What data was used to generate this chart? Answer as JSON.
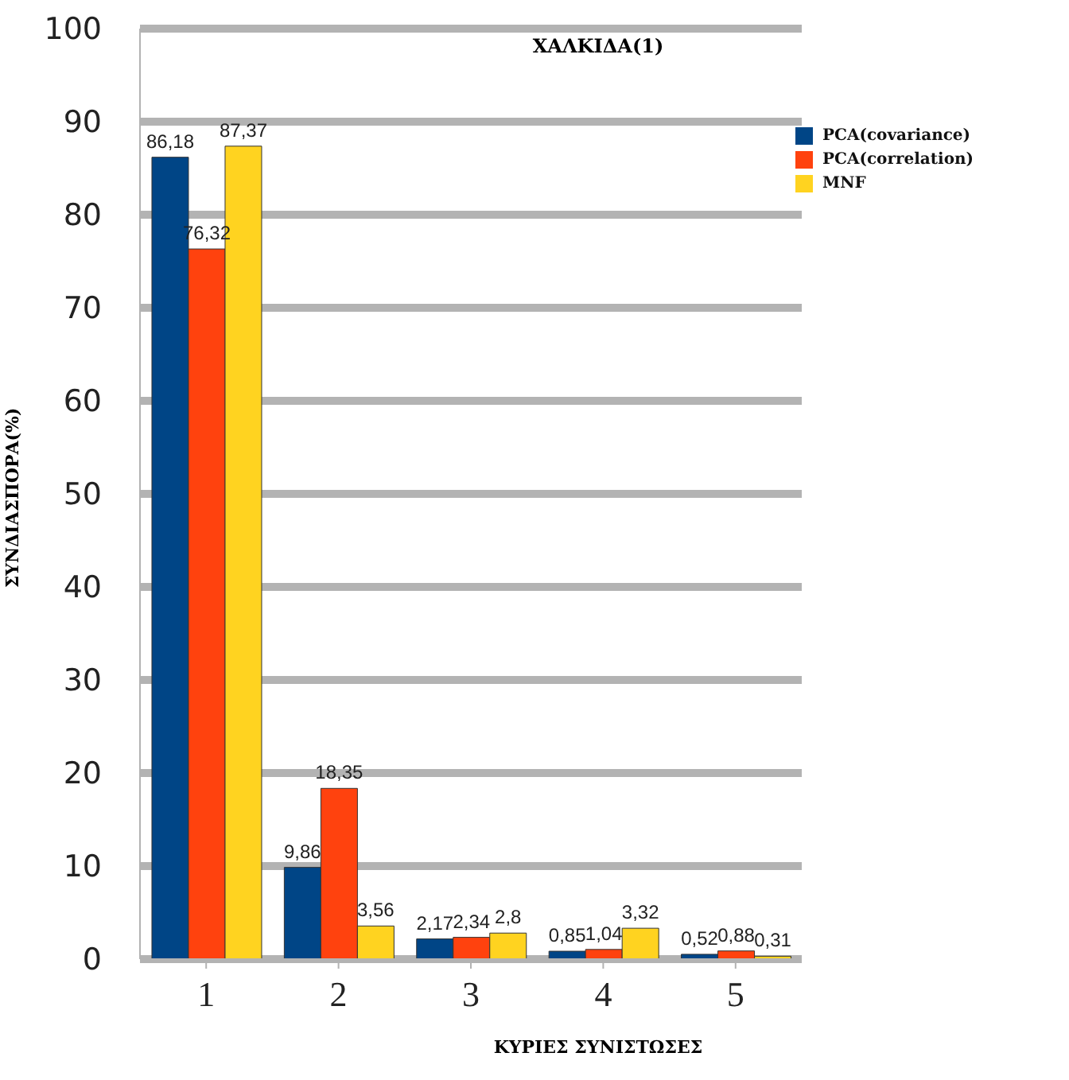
{
  "chart_data": {
    "type": "bar",
    "title": "ΧΑΛΚΙΔΑ(1)",
    "xlabel": "ΚΥΡΙΕΣ ΣΥΝΙΣΤΩΣΕΣ",
    "ylabel": "ΣΥΝΔΙΑΣΠΟΡΑ(%)",
    "categories": [
      "1",
      "2",
      "3",
      "4",
      "5"
    ],
    "series": [
      {
        "name": "PCA(covariance)",
        "color": "#004586",
        "values": [
          86.18,
          9.86,
          2.17,
          0.85,
          0.52
        ],
        "value_labels": [
          "86,18",
          "9,86",
          "2,17",
          "0,85",
          "0,52"
        ]
      },
      {
        "name": "PCA(correlation)",
        "color": "#ff420e",
        "values": [
          76.32,
          18.35,
          2.34,
          1.04,
          0.88
        ],
        "value_labels": [
          "76,32",
          "18,35",
          "2,34",
          "1,04",
          "0,88"
        ]
      },
      {
        "name": "MNF",
        "color": "#ffd320",
        "values": [
          87.37,
          3.56,
          2.8,
          3.32,
          0.31
        ],
        "value_labels": [
          "87,37",
          "3,56",
          "2,8",
          "3,32",
          "0,31"
        ]
      }
    ],
    "ylim": [
      0,
      100
    ],
    "yticks": [
      0,
      10,
      20,
      30,
      40,
      50,
      60,
      70,
      80,
      90,
      100
    ],
    "grid": "y",
    "legend": "top right"
  }
}
